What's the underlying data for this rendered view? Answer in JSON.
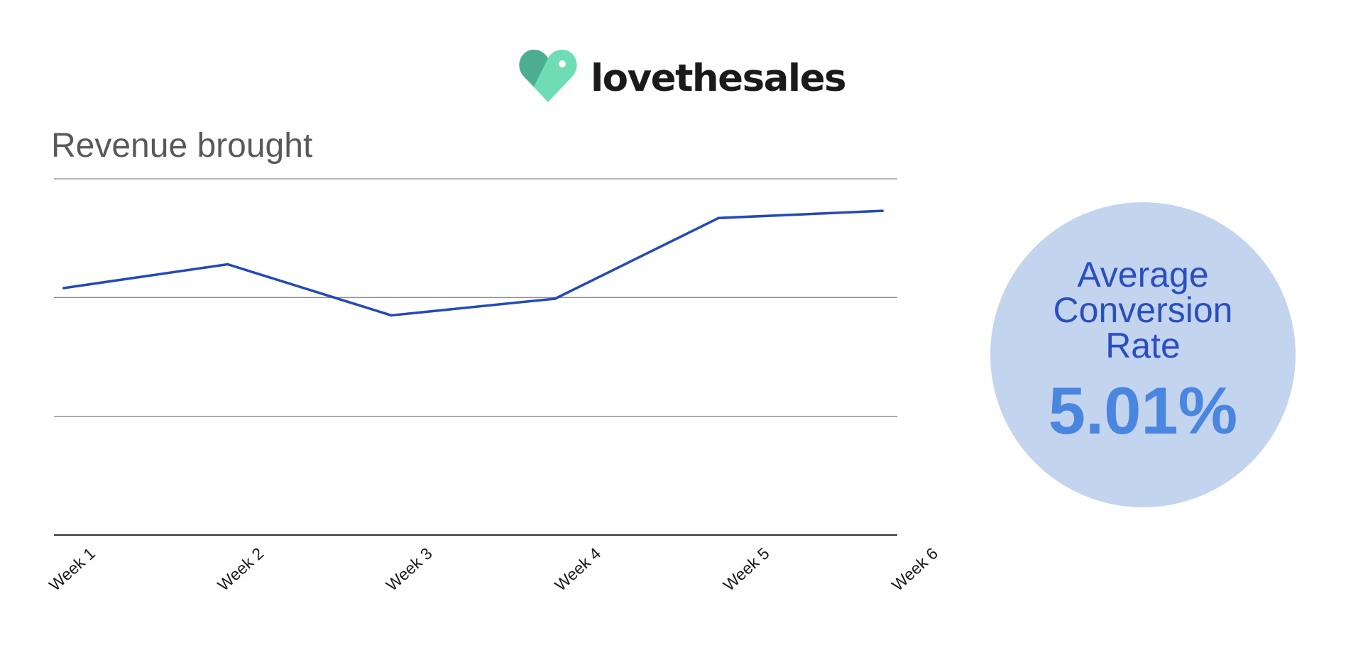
{
  "brand": {
    "name": "lovethesales",
    "colors": {
      "heart_dark": "#4cae8e",
      "heart_light": "#6edcb4"
    }
  },
  "chart_data": {
    "type": "line",
    "title": "Revenue brought",
    "categories": [
      "Week 1",
      "Week 2",
      "Week 3",
      "Week 4",
      "Week 5",
      "Week 6"
    ],
    "series": [
      {
        "values": [
          0.58,
          0.78,
          0.35,
          0.49,
          1.17,
          1.23
        ],
        "color": "#2449b8"
      }
    ],
    "ylim": [
      -1.5,
      1.5
    ],
    "ygrid": [
      -1.5,
      -0.5,
      0.5,
      1.5
    ],
    "grid": true,
    "legend": "none",
    "xlabel": "",
    "ylabel": ""
  },
  "kpi": {
    "label": "Average Conversion Rate",
    "value": "5.01%"
  }
}
